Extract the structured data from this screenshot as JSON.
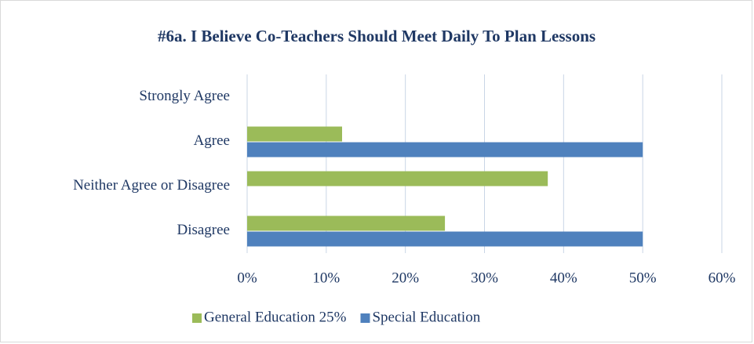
{
  "chart_data": {
    "type": "bar",
    "orientation": "horizontal",
    "title": "#6a. I Believe Co-Teachers Should Meet Daily To Plan Lessons",
    "categories": [
      "Strongly Agree",
      "Agree",
      "Neither Agree or Disagree",
      "Disagree"
    ],
    "series": [
      {
        "name": "General Education 25%",
        "color": "#9bbb59",
        "values": [
          0,
          12,
          38,
          25
        ]
      },
      {
        "name": "Special Education",
        "color": "#4f81bd",
        "values": [
          0,
          50,
          0,
          50
        ]
      }
    ],
    "xlim": [
      0,
      60
    ],
    "xticks": [
      {
        "value": 0,
        "label": "0%"
      },
      {
        "value": 10,
        "label": "10%"
      },
      {
        "value": 20,
        "label": "20%"
      },
      {
        "value": 30,
        "label": "30%"
      },
      {
        "value": 40,
        "label": "40%"
      },
      {
        "value": 50,
        "label": "50%"
      },
      {
        "value": 60,
        "label": "60%"
      }
    ],
    "grid": true,
    "legend": "bottom"
  }
}
